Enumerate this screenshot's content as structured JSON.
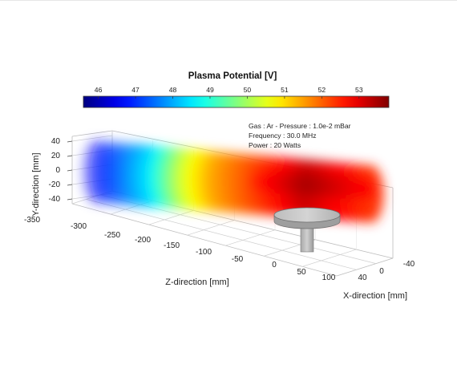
{
  "chart_data": {
    "type": "heatmap",
    "title": "Plasma Potential [V]",
    "colorbar": {
      "ticks": [
        46,
        47,
        48,
        49,
        50,
        51,
        52,
        53
      ],
      "range": [
        45.6,
        53.8
      ],
      "colormap": "jet"
    },
    "annotations": [
      "Gas : Ar - Pressure : 1.0e-2 mBar",
      "Frequency : 30.0 MHz",
      "Power : 20 Watts"
    ],
    "axes": {
      "x": {
        "label": "X-direction [mm]",
        "ticks": [
          40,
          0,
          -40
        ]
      },
      "y": {
        "label": "Y-direction [mm]",
        "ticks": [
          40,
          20,
          0,
          -20,
          -40
        ]
      },
      "z": {
        "label": "Z-direction [mm]",
        "ticks": [
          -350,
          -300,
          -250,
          -200,
          -150,
          -100,
          -50,
          0,
          50,
          100
        ]
      }
    },
    "field_profile": {
      "z": [
        -350,
        -300,
        -250,
        -200,
        -150,
        -100,
        -50,
        0,
        50,
        100
      ],
      "potential": [
        46.5,
        47.5,
        48.5,
        50.3,
        51.4,
        52.0,
        52.6,
        53.2,
        52.8,
        52.4
      ]
    },
    "grid": true,
    "legend": "none",
    "colors": {
      "box_line": "#c8c8c8",
      "electrode_fill": "#c2c2c2",
      "electrode_stroke": "#6f6f6f"
    }
  }
}
